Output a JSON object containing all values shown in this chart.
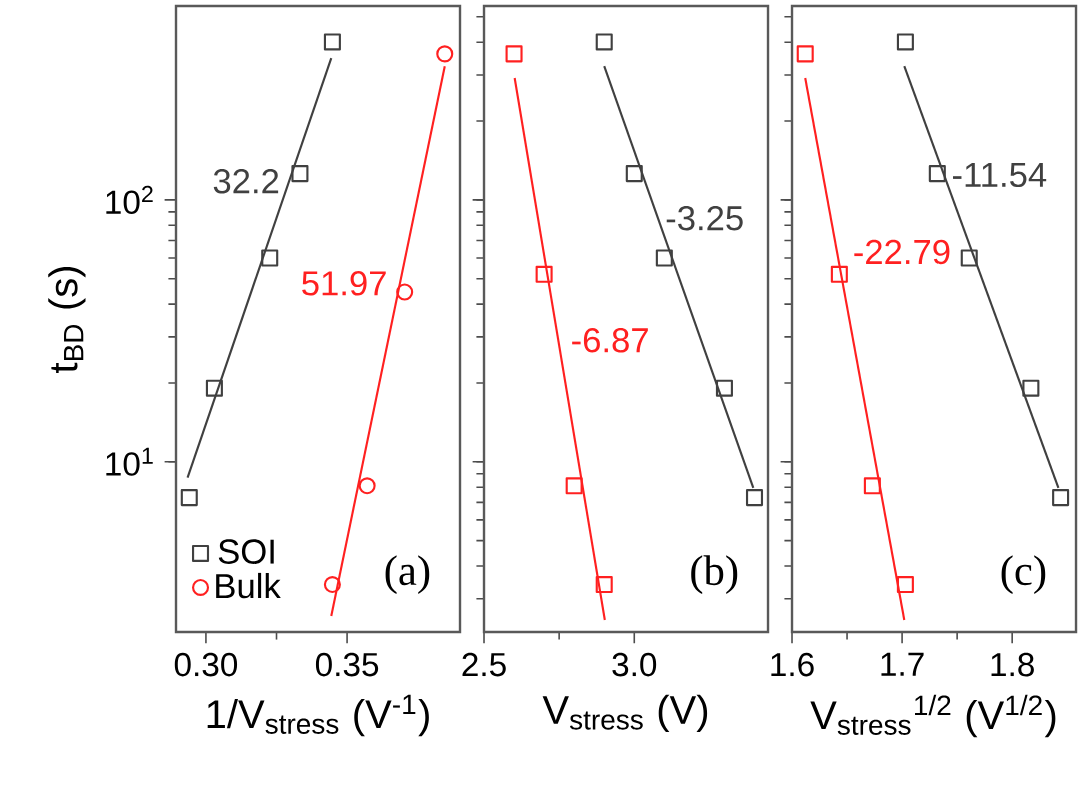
{
  "chart_data": [
    {
      "type": "scatter",
      "xlabel": "1/V$_{stress}$ (V$^{-1}$)",
      "ylabel": "t$_{BD}$ (s)",
      "log": "y",
      "xlim": [
        0.2894,
        0.39
      ],
      "xticks": [
        {
          "value": 0.3,
          "label": "0.30"
        },
        0.35
      ],
      "ylim": [
        2.24,
        550
      ],
      "yticks": [
        {
          "value": 10,
          "label": "10$^{1}$"
        },
        {
          "value": 100,
          "label": "10$^{2}$"
        }
      ],
      "legend": "bottom left",
      "series": [
        {
          "name": "SOI",
          "marker": "square",
          "color": "#404040",
          "x": [
            0.3448,
            0.3333,
            0.3226,
            0.303,
            0.2941
          ],
          "values": [
            401,
            126,
            60,
            19.1,
            7.3
          ]
        },
        {
          "name": "Bulk",
          "marker": "circle",
          "color": "#ff2020",
          "x": [
            0.3846,
            0.3704,
            0.3571,
            0.3448
          ],
          "values": [
            361,
            44.5,
            8.1,
            3.4
          ]
        },
        {
          "type": "line",
          "marker": "none",
          "color": "#404040",
          "x": [
            0.2935,
            0.3444
          ],
          "values": [
            8.7,
            348
          ]
        },
        {
          "type": "line",
          "marker": "none",
          "color": "#ff2020",
          "x": [
            0.3444,
            0.3846
          ],
          "values": [
            2.58,
            324
          ]
        }
      ],
      "annotations": [
        "32.2",
        "51.97",
        "(a)"
      ]
    },
    {
      "type": "scatter",
      "xlabel": "V$_{stress}$ (V)",
      "log": "y",
      "xlim": [
        2.5,
        3.445
      ],
      "xticks": [
        {
          "value": 2.5,
          "label": "2.5"
        },
        {
          "value": 3.0,
          "label": "3.0"
        }
      ],
      "ylim": [
        2.24,
        550
      ],
      "tick_labels": "x",
      "series": [
        {
          "marker": "square",
          "color": "#404040",
          "x": [
            2.9,
            3.0,
            3.1,
            3.3,
            3.4
          ],
          "values": [
            401,
            126,
            60,
            19.1,
            7.3
          ]
        },
        {
          "marker": "square",
          "color": "#ff2020",
          "x": [
            2.6,
            2.7,
            2.8,
            2.9
          ],
          "values": [
            361,
            52,
            8.1,
            3.4
          ]
        },
        {
          "type": "line",
          "marker": "none",
          "color": "#404040",
          "x": [
            2.9,
            3.396
          ],
          "values": [
            324,
            7.95
          ]
        },
        {
          "type": "line",
          "marker": "none",
          "color": "#ff2020",
          "x": [
            2.602,
            2.902
          ],
          "values": [
            292,
            2.49
          ]
        }
      ],
      "annotations": [
        "-3.25",
        "-6.87",
        "(b)"
      ]
    },
    {
      "type": "scatter",
      "xlabel": "V$_{stress}$$^{1/2}$ (V$^{1/2}$)",
      "log": "y",
      "xlim": [
        1.6,
        1.858
      ],
      "xticks": [
        {
          "value": 1.6,
          "label": "1.6"
        },
        1.7,
        1.8
      ],
      "ylim": [
        2.24,
        550
      ],
      "tick_labels": "x",
      "series": [
        {
          "marker": "square",
          "color": "#404040",
          "x": [
            1.703,
            1.732,
            1.761,
            1.817,
            1.844
          ],
          "values": [
            401,
            126,
            60,
            19.1,
            7.3
          ]
        },
        {
          "marker": "square",
          "color": "#ff2020",
          "x": [
            1.612,
            1.643,
            1.673,
            1.703
          ],
          "values": [
            361,
            52,
            8.1,
            3.4
          ]
        },
        {
          "type": "line",
          "marker": "none",
          "color": "#404040",
          "x": [
            1.702,
            1.842
          ],
          "values": [
            324,
            7.95
          ]
        },
        {
          "type": "line",
          "marker": "none",
          "color": "#ff2020",
          "x": [
            1.612,
            1.702
          ],
          "values": [
            292,
            2.49
          ]
        }
      ],
      "annotations": [
        "-11.54",
        "-22.79",
        "(c)"
      ]
    }
  ]
}
